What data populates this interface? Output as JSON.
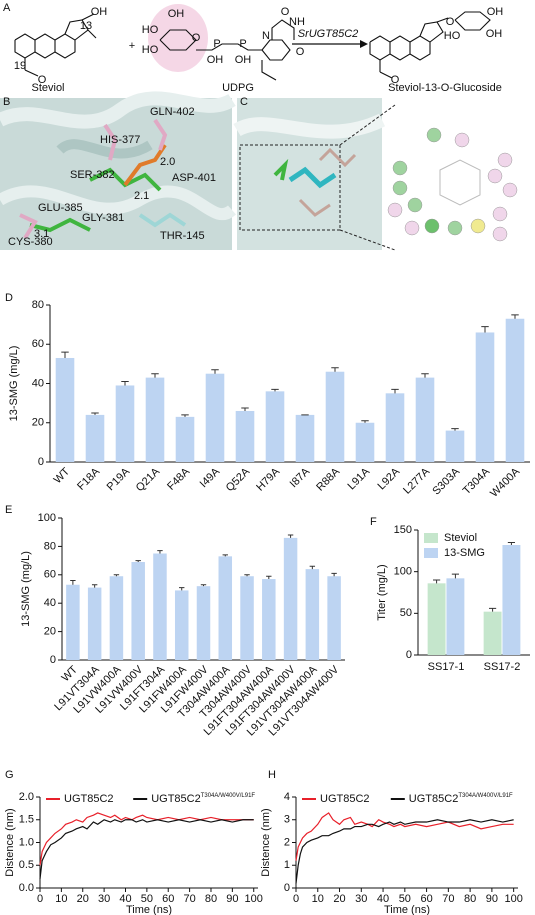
{
  "panel_a": {
    "label": "A",
    "reactant": "Steviol",
    "plus": "+",
    "donor": "UDPG",
    "enzyme": "SrUGT85C2",
    "product": "Steviol-13-O-Glucoside",
    "reactant_atoms": [
      "OH",
      "13",
      "19",
      "O"
    ],
    "donor_atoms": [
      "OH",
      "HO",
      "HO",
      "O",
      "P",
      "P",
      "OH",
      "OH",
      "NH",
      "O",
      "O",
      "N"
    ],
    "product_atoms": [
      "O",
      "OH",
      "HO",
      "OH",
      "O"
    ]
  },
  "panel_b": {
    "label": "B",
    "residues": [
      "GLN-402",
      "HIS-377",
      "SER-382",
      "ASP-401",
      "GLU-385",
      "GLY-381",
      "THR-145",
      "CYS-380"
    ],
    "distances": [
      "2.0",
      "2.1",
      "3.1"
    ]
  },
  "panel_c": {
    "label": "C"
  },
  "chart_data": [
    {
      "type": "bar",
      "panel_label": "D",
      "y_label": "13-SMG (mg/L)",
      "color": "#bdd4f2",
      "categories": [
        "WT",
        "F18A",
        "P19A",
        "Q21A",
        "F48A",
        "I49A",
        "Q52A",
        "H79A",
        "I87A",
        "R88A",
        "L91A",
        "L92A",
        "L277A",
        "S303A",
        "T304A",
        "W400A"
      ],
      "values": [
        53,
        24,
        39,
        43,
        23,
        45,
        26,
        36,
        24,
        46,
        20,
        35,
        43,
        16,
        66,
        73
      ],
      "errors": [
        3,
        1,
        2,
        2,
        1,
        2,
        1.5,
        1,
        0,
        2,
        1,
        2,
        2,
        1,
        3,
        2
      ],
      "ylim": [
        0,
        80
      ],
      "yticks": [
        0,
        20,
        40,
        60,
        80
      ]
    },
    {
      "type": "bar",
      "panel_label": "E",
      "y_label": "13-SMG (mg/L)",
      "color": "#bdd4f2",
      "categories": [
        "WT",
        "L91VT304A",
        "L91VW400A",
        "L91VW400V",
        "L91FT304A",
        "L91FW400A",
        "L91FW400V",
        "T304AW400A",
        "T304AW400V",
        "L91FT304AW400A",
        "L91FT304AW400V",
        "L91VT304AW400A",
        "L91VT304AW400V"
      ],
      "values": [
        53,
        51,
        59,
        69,
        75,
        49,
        52,
        73,
        59,
        57,
        86,
        64,
        59
      ],
      "errors": [
        3,
        2,
        1,
        1,
        2,
        2,
        1,
        1,
        1,
        2,
        2,
        2,
        2
      ],
      "ylim": [
        0,
        100
      ],
      "yticks": [
        0,
        20,
        40,
        60,
        80,
        100
      ]
    },
    {
      "type": "bar",
      "panel_label": "F",
      "y_label": "Titer (mg/L)",
      "categories": [
        "SS17-1",
        "SS17-2"
      ],
      "series": [
        {
          "name": "Steviol",
          "color": "#c5e6cc",
          "values": [
            86,
            52
          ],
          "errors": [
            4,
            4
          ]
        },
        {
          "name": "13-SMG",
          "color": "#bdd4f2",
          "values": [
            92,
            132
          ],
          "errors": [
            5,
            3
          ]
        }
      ],
      "ylim": [
        0,
        150
      ],
      "yticks": [
        0,
        50,
        100,
        150
      ]
    },
    {
      "type": "line",
      "panel_label": "G",
      "x_label": "Time (ns)",
      "y_label": "Distence (nm)",
      "x": [
        0,
        1,
        2,
        3,
        5,
        7,
        10,
        12,
        15,
        17,
        20,
        22,
        25,
        27,
        30,
        33,
        35,
        38,
        40,
        43,
        45,
        48,
        50,
        55,
        60,
        65,
        70,
        75,
        80,
        85,
        90,
        95,
        100
      ],
      "series": [
        {
          "name": "UGT85C2",
          "color": "#e8202a",
          "values": [
            0.5,
            0.8,
            0.9,
            1.0,
            1.1,
            1.2,
            1.3,
            1.4,
            1.45,
            1.5,
            1.45,
            1.55,
            1.6,
            1.65,
            1.6,
            1.55,
            1.6,
            1.5,
            1.55,
            1.5,
            1.55,
            1.6,
            1.55,
            1.5,
            1.55,
            1.5,
            1.55,
            1.5,
            1.55,
            1.5,
            1.5,
            1.5,
            1.5
          ]
        },
        {
          "name": "UGT85C2",
          "superscript": "T304A/W400V/L91F",
          "color": "#111111",
          "values": [
            0.2,
            0.6,
            0.7,
            0.8,
            0.95,
            1.0,
            1.1,
            1.2,
            1.25,
            1.3,
            1.35,
            1.3,
            1.45,
            1.4,
            1.5,
            1.45,
            1.5,
            1.45,
            1.5,
            1.5,
            1.45,
            1.5,
            1.45,
            1.5,
            1.45,
            1.5,
            1.45,
            1.5,
            1.45,
            1.5,
            1.45,
            1.5,
            1.5
          ]
        }
      ],
      "xlim": [
        0,
        102
      ],
      "xticks": [
        0,
        10,
        20,
        30,
        40,
        50,
        60,
        70,
        80,
        90,
        100
      ],
      "ylim": [
        0,
        2
      ],
      "yticks": [
        {
          "value": 0,
          "label": "0.0"
        },
        0.5,
        {
          "value": 1,
          "label": "1.0"
        },
        1.5,
        {
          "value": 2,
          "label": "2.0"
        }
      ]
    },
    {
      "type": "line",
      "panel_label": "H",
      "x_label": "Time (ns)",
      "y_label": "Distence (nm)",
      "x": [
        0,
        1,
        2,
        3,
        5,
        7,
        10,
        12,
        15,
        17,
        20,
        22,
        25,
        27,
        30,
        33,
        35,
        38,
        40,
        43,
        45,
        48,
        50,
        55,
        60,
        65,
        70,
        75,
        80,
        85,
        90,
        95,
        100
      ],
      "series": [
        {
          "name": "UGT85C2",
          "color": "#e8202a",
          "values": [
            1.2,
            1.8,
            2.0,
            2.2,
            2.4,
            2.5,
            2.8,
            3.1,
            3.3,
            3.0,
            2.8,
            3.0,
            3.1,
            2.8,
            2.9,
            2.8,
            2.7,
            3.0,
            2.9,
            2.8,
            2.7,
            2.8,
            2.7,
            2.8,
            2.7,
            2.8,
            2.9,
            2.7,
            2.8,
            2.6,
            2.7,
            2.8,
            2.8
          ]
        },
        {
          "name": "UGT85C2",
          "superscript": "T304A/W400V/L91F",
          "color": "#111111",
          "values": [
            0.2,
            1.0,
            1.5,
            1.8,
            2.0,
            2.1,
            2.2,
            2.3,
            2.3,
            2.4,
            2.5,
            2.6,
            2.6,
            2.7,
            2.7,
            2.8,
            2.8,
            2.7,
            2.8,
            2.9,
            2.8,
            2.9,
            2.8,
            2.9,
            2.9,
            3.0,
            2.9,
            2.9,
            3.0,
            2.9,
            3.0,
            2.9,
            3.0
          ]
        }
      ],
      "xlim": [
        0,
        102
      ],
      "xticks": [
        0,
        10,
        20,
        30,
        40,
        50,
        60,
        70,
        80,
        90,
        100
      ],
      "ylim": [
        0,
        4
      ],
      "yticks": [
        0,
        1,
        2,
        3,
        4
      ]
    }
  ]
}
